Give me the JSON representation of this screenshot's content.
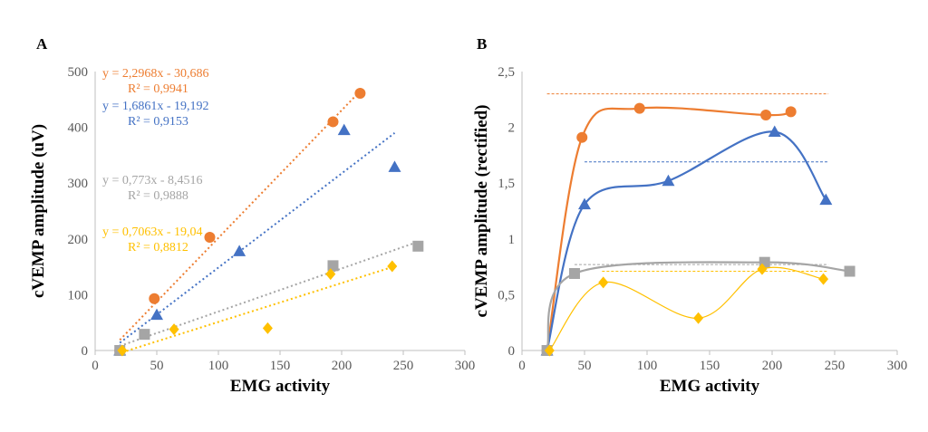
{
  "chart_data": [
    {
      "type": "scatter",
      "panel_label": "A",
      "xlabel": "EMG activity",
      "ylabel": "cVEMP amplitude (uV)",
      "xlim": [
        0,
        300
      ],
      "ylim": [
        0,
        500
      ],
      "x_ticks": [
        "0",
        "50",
        "100",
        "150",
        "200",
        "250",
        "300"
      ],
      "y_ticks": [
        "0",
        "100",
        "200",
        "300",
        "400",
        "500"
      ],
      "grid": false,
      "legend": "none",
      "series": [
        {
          "color": "#ED7D31",
          "marker": "circle",
          "points": [
            [
              20,
              0
            ],
            [
              48,
              93
            ],
            [
              93,
              203
            ],
            [
              193,
              410
            ],
            [
              215,
              461
            ]
          ],
          "trendline": {
            "x": [
              20,
              215
            ],
            "equation": "y = 2,2968x - 30,686",
            "r2": "R² = 0,9941"
          }
        },
        {
          "color": "#4472C4",
          "marker": "triangle",
          "points": [
            [
              20,
              0
            ],
            [
              50,
              64
            ],
            [
              117,
              178
            ],
            [
              202,
              395
            ],
            [
              243,
              329
            ]
          ],
          "trendline": {
            "x": [
              20,
              243
            ],
            "equation": "y = 1,6861x - 19,192",
            "r2": "R² = 0,9153"
          }
        },
        {
          "color": "#A5A5A5",
          "marker": "square",
          "points": [
            [
              20,
              0
            ],
            [
              40,
              29
            ],
            [
              193,
              152
            ],
            [
              262,
              187
            ]
          ],
          "trendline": {
            "x": [
              20,
              262
            ],
            "equation": "y = 0,773x - 8,4516",
            "r2": "R² = 0,9888"
          }
        },
        {
          "color": "#FFC000",
          "marker": "diamond",
          "points": [
            [
              22,
              0
            ],
            [
              64,
              38
            ],
            [
              140,
              40
            ],
            [
              191,
              137
            ],
            [
              241,
              151
            ]
          ],
          "trendline": {
            "x": [
              22,
              241
            ],
            "equation": "y = 0,7063x - 19,04",
            "r2": "R² = 0,8812"
          }
        }
      ]
    },
    {
      "type": "line",
      "panel_label": "B",
      "xlabel": "EMG activity",
      "ylabel": "cVEMP amplitude (rectified)",
      "xlim": [
        0,
        300
      ],
      "ylim": [
        0,
        2.5
      ],
      "x_ticks": [
        "0",
        "50",
        "100",
        "150",
        "200",
        "250",
        "300"
      ],
      "y_ticks": [
        "0",
        "0,5",
        "1",
        "1,5",
        "2",
        "2,5"
      ],
      "grid": false,
      "legend": "none",
      "series": [
        {
          "color": "#ED7D31",
          "marker": "circle",
          "points": [
            [
              20,
              0
            ],
            [
              48,
              1.91
            ],
            [
              94,
              2.17
            ],
            [
              195,
              2.11
            ],
            [
              215,
              2.14
            ]
          ],
          "reference": {
            "y": 2.3,
            "x": [
              20,
              245
            ]
          }
        },
        {
          "color": "#4472C4",
          "marker": "triangle",
          "points": [
            [
              20,
              0
            ],
            [
              50,
              1.31
            ],
            [
              117,
              1.52
            ],
            [
              202,
              1.96
            ],
            [
              243,
              1.35
            ]
          ],
          "reference": {
            "y": 1.69,
            "x": [
              50,
              245
            ]
          }
        },
        {
          "color": "#A5A5A5",
          "marker": "square",
          "points": [
            [
              20,
              0
            ],
            [
              42,
              0.69
            ],
            [
              194,
              0.79
            ],
            [
              262,
              0.71
            ]
          ],
          "reference": {
            "y": 0.77,
            "x": [
              42,
              245
            ]
          }
        },
        {
          "color": "#FFC000",
          "marker": "diamond",
          "points": [
            [
              22,
              0
            ],
            [
              65,
              0.61
            ],
            [
              141,
              0.29
            ],
            [
              192,
              0.73
            ],
            [
              241,
              0.64
            ]
          ],
          "reference": {
            "y": 0.71,
            "x": [
              64,
              245
            ]
          }
        }
      ]
    }
  ]
}
